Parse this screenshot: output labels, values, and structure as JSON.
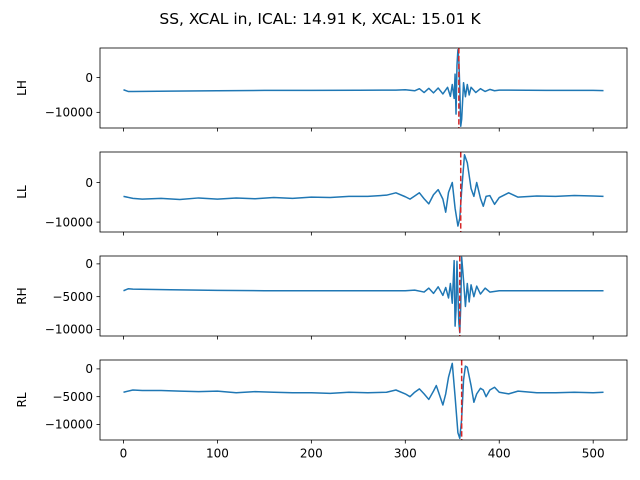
{
  "figure": {
    "title": "SS, XCAL in, ICAL: 14.91 K, XCAL: 15.01 K"
  },
  "colors": {
    "signal": "#1f77b4",
    "marker": "#d62728",
    "axes": "#000000",
    "background": "#ffffff"
  },
  "chart_data": [
    {
      "type": "line",
      "ylabel": "LH",
      "xlim": [
        -25,
        536
      ],
      "ylim": [
        -14500,
        8500
      ],
      "xticks": [
        0,
        100,
        200,
        300,
        400,
        500
      ],
      "xtick_labels": [
        "",
        "",
        "",
        "",
        "",
        ""
      ],
      "yticks": [
        0,
        -10000
      ],
      "ytick_labels": [
        "0",
        "−10000"
      ],
      "vline_x": 357,
      "series": [
        {
          "x": [
            0,
            5,
            10,
            50,
            100,
            150,
            200,
            250,
            290,
            300,
            310,
            315,
            320,
            325,
            330,
            335,
            340,
            345,
            348,
            350,
            352,
            353,
            354,
            355,
            356,
            357,
            358,
            359,
            360,
            362,
            364,
            366,
            368,
            370,
            375,
            380,
            385,
            390,
            395,
            400,
            410,
            450,
            500,
            511
          ],
          "y": [
            -3500,
            -4000,
            -4000,
            -3900,
            -3800,
            -3700,
            -3700,
            -3650,
            -3600,
            -3500,
            -3800,
            -3200,
            -4300,
            -3100,
            -4400,
            -3000,
            -4700,
            -2800,
            -5400,
            -2000,
            -6000,
            1000,
            -10500,
            3500,
            8000,
            5000,
            -3000,
            -14000,
            -12000,
            -1500,
            -5500,
            -2000,
            -5000,
            -2800,
            -4300,
            -3200,
            -4000,
            -3400,
            -3800,
            -3600,
            -3600,
            -3700,
            -3700,
            -3750
          ]
        }
      ]
    },
    {
      "type": "line",
      "ylabel": "LL",
      "xlim": [
        -25,
        536
      ],
      "ylim": [
        -12500,
        7700
      ],
      "xticks": [
        0,
        100,
        200,
        300,
        400,
        500
      ],
      "xtick_labels": [
        "",
        "",
        "",
        "",
        "",
        ""
      ],
      "yticks": [
        0,
        -10000
      ],
      "ytick_labels": [
        "0",
        "−10000"
      ],
      "vline_x": 359,
      "series": [
        {
          "x": [
            0,
            10,
            20,
            40,
            60,
            80,
            100,
            120,
            140,
            160,
            180,
            200,
            220,
            240,
            260,
            280,
            290,
            300,
            305,
            310,
            315,
            320,
            325,
            330,
            335,
            340,
            343,
            346,
            350,
            353,
            356,
            358,
            360,
            363,
            366,
            370,
            373,
            376,
            380,
            383,
            386,
            390,
            395,
            400,
            410,
            420,
            440,
            460,
            480,
            500,
            511
          ],
          "y": [
            -3500,
            -4000,
            -4200,
            -4000,
            -4300,
            -3900,
            -4200,
            -3900,
            -4100,
            -3800,
            -4000,
            -3700,
            -3800,
            -3500,
            -3500,
            -3200,
            -2600,
            -3600,
            -4200,
            -3400,
            -2600,
            -4100,
            -5400,
            -3100,
            -1800,
            -4200,
            -7500,
            -2500,
            0,
            -6500,
            -11000,
            -9000,
            -2000,
            7000,
            5000,
            -1500,
            -3500,
            0,
            -4000,
            -6000,
            -3500,
            -3300,
            -5500,
            -3800,
            -2600,
            -3700,
            -3400,
            -3500,
            -3300,
            -3400,
            -3500
          ]
        }
      ]
    },
    {
      "type": "line",
      "ylabel": "RH",
      "xlim": [
        -25,
        536
      ],
      "ylim": [
        -11000,
        1200
      ],
      "xticks": [
        0,
        100,
        200,
        300,
        400,
        500
      ],
      "xtick_labels": [
        "",
        "",
        "",
        "",
        "",
        ""
      ],
      "yticks": [
        0,
        -5000,
        -10000
      ],
      "ytick_labels": [
        "0",
        "−5000",
        "−10000"
      ],
      "vline_x": 358,
      "series": [
        {
          "x": [
            0,
            5,
            10,
            50,
            100,
            150,
            200,
            250,
            300,
            310,
            320,
            325,
            330,
            335,
            340,
            343,
            346,
            348,
            350,
            352,
            353,
            354,
            355,
            356,
            357,
            358,
            359,
            360,
            362,
            364,
            366,
            368,
            370,
            373,
            376,
            380,
            385,
            390,
            400,
            450,
            500,
            511
          ],
          "y": [
            -4100,
            -3800,
            -3850,
            -3950,
            -4050,
            -4100,
            -4100,
            -4100,
            -4100,
            -4000,
            -4300,
            -3700,
            -4500,
            -3500,
            -4800,
            -3600,
            -5200,
            -3000,
            -6000,
            500,
            -9500,
            -7000,
            400,
            -4500,
            -9000,
            -10500,
            -6500,
            1000,
            -2500,
            -6500,
            -3000,
            -5800,
            -3200,
            -5000,
            -3400,
            -4600,
            -3700,
            -4300,
            -4100,
            -4100,
            -4100,
            -4100
          ]
        }
      ]
    },
    {
      "type": "line",
      "ylabel": "RL",
      "xlim": [
        -25,
        536
      ],
      "ylim": [
        -12800,
        1600
      ],
      "xticks": [
        0,
        100,
        200,
        300,
        400,
        500
      ],
      "xtick_labels": [
        "0",
        "100",
        "200",
        "300",
        "400",
        "500"
      ],
      "yticks": [
        0,
        -5000,
        -10000
      ],
      "ytick_labels": [
        "0",
        "−5000",
        "−10000"
      ],
      "vline_x": 360,
      "series": [
        {
          "x": [
            0,
            10,
            20,
            40,
            60,
            80,
            100,
            120,
            140,
            160,
            180,
            200,
            220,
            240,
            260,
            280,
            290,
            300,
            305,
            310,
            315,
            320,
            325,
            330,
            333,
            336,
            340,
            343,
            346,
            350,
            353,
            356,
            358,
            360,
            362,
            364,
            366,
            370,
            373,
            376,
            380,
            383,
            386,
            390,
            395,
            400,
            410,
            420,
            440,
            460,
            480,
            500,
            511
          ],
          "y": [
            -4200,
            -3800,
            -3900,
            -3900,
            -4000,
            -4100,
            -4000,
            -4300,
            -4100,
            -4200,
            -4300,
            -4300,
            -4400,
            -4200,
            -4300,
            -4200,
            -3800,
            -4500,
            -5000,
            -4200,
            -3600,
            -4500,
            -5500,
            -4000,
            -3000,
            -4500,
            -6500,
            -4500,
            -1500,
            1000,
            -5000,
            -11500,
            -12500,
            -9000,
            -2000,
            500,
            300,
            -3000,
            -6000,
            -4500,
            -3500,
            -3800,
            -5000,
            -3800,
            -3300,
            -4200,
            -4500,
            -4000,
            -4300,
            -4300,
            -4200,
            -4300,
            -4200
          ]
        }
      ]
    }
  ]
}
